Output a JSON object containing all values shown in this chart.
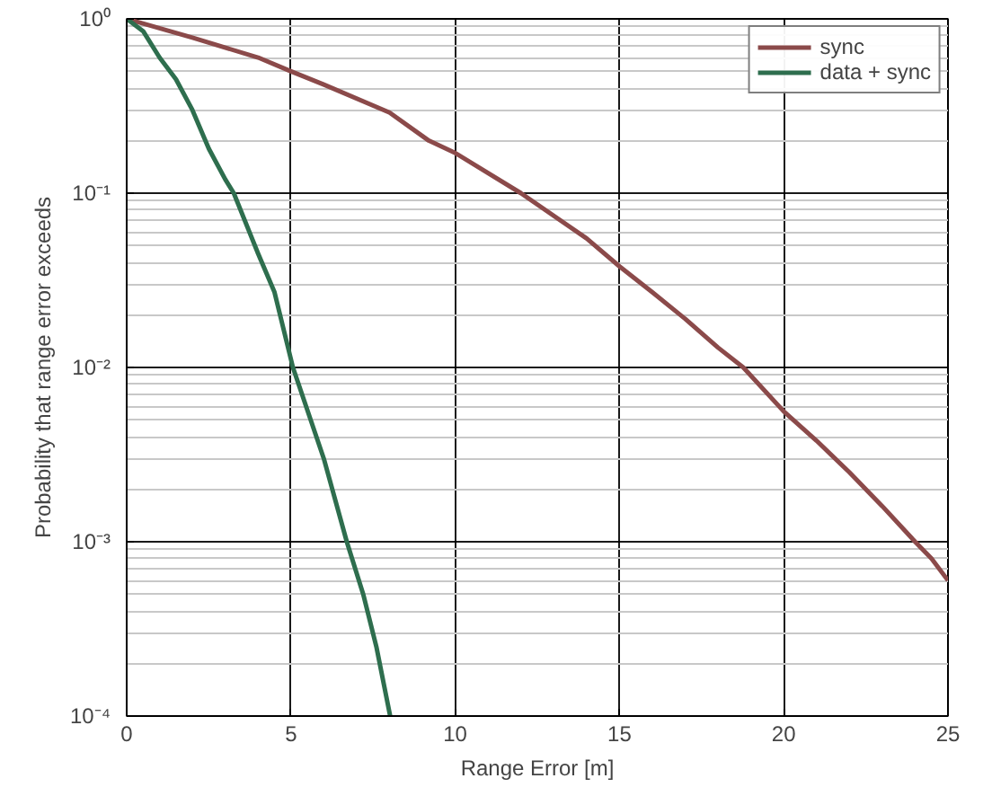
{
  "chart_data": {
    "type": "line",
    "xlabel": "Range Error [m]",
    "ylabel": "Probability that range error exceeds",
    "log": "y",
    "grid": true,
    "legend": "top right",
    "line_style": "solid",
    "marker": "none",
    "xlim": [
      0,
      25
    ],
    "xticks": [
      0,
      5,
      10,
      15,
      20,
      25
    ],
    "ylim": [
      0.0001,
      1
    ],
    "yticks": [
      {
        "value": 0.0001,
        "label": "10⁻⁴"
      },
      {
        "value": 0.001,
        "label": "10⁻³"
      },
      {
        "value": 0.01,
        "label": "10⁻²"
      },
      {
        "value": 0.1,
        "label": "10⁻¹"
      },
      {
        "value": 1,
        "label": "10⁰"
      }
    ],
    "series": [
      {
        "name": "sync",
        "color": "#8b4a4a",
        "x": [
          0,
          2,
          4,
          5,
          6,
          8,
          9.2,
          10,
          12,
          14,
          15,
          16,
          17,
          18,
          18.77,
          20,
          21,
          22,
          23,
          24,
          24.5,
          25
        ],
        "values": [
          1,
          0.78,
          0.6,
          0.5,
          0.42,
          0.29,
          0.2,
          0.17,
          0.1,
          0.055,
          0.038,
          0.027,
          0.019,
          0.013,
          0.01,
          0.0056,
          0.0038,
          0.0025,
          0.0016,
          0.001,
          0.0008,
          0.0006
        ]
      },
      {
        "name": "data + sync",
        "color": "#2e6e4e",
        "x": [
          0,
          0.5,
          1,
          1.5,
          2,
          2.5,
          3,
          3.26,
          4,
          4.5,
          5.06,
          6,
          6.7,
          7.2,
          7.6,
          8.02
        ],
        "values": [
          1,
          0.85,
          0.6,
          0.45,
          0.3,
          0.18,
          0.12,
          0.1,
          0.045,
          0.027,
          0.01,
          0.003,
          0.001,
          0.0005,
          0.00025,
          0.0001
        ]
      }
    ]
  }
}
